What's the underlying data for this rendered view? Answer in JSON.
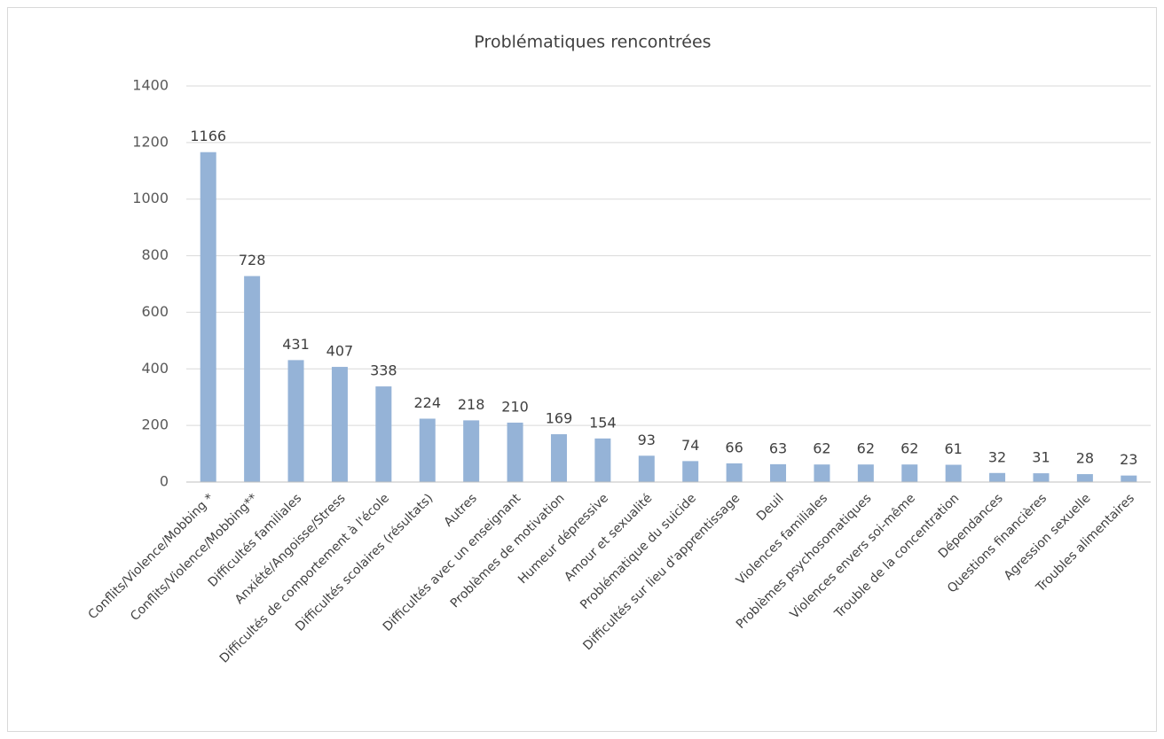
{
  "chart_data": {
    "type": "bar",
    "title": "Problématiques rencontrées",
    "categories": [
      "Conflits/Violence/Mobbing *",
      "Conflits/Violence/Mobbing**",
      "Difficultés familiales",
      "Anxiété/Angoisse/Stress",
      "Difficultés de comportement à l'école",
      "Difficultés scolaires (résultats)",
      "Autres",
      "Difficultés avec un enseignant",
      "Problèmes de motivation",
      "Humeur dépressive",
      "Amour et sexualité",
      "Problématique du suicide",
      "Difficultés sur lieu d'apprentissage",
      "Deuil",
      "Violences familiales",
      "Problèmes psychosomatiques",
      "Violences envers soi-même",
      "Trouble de la concentration",
      "Dépendances",
      "Questions financières",
      "Agression sexuelle",
      "Troubles alimentaires"
    ],
    "values": [
      1166,
      728,
      431,
      407,
      338,
      224,
      218,
      210,
      169,
      154,
      93,
      74,
      66,
      63,
      62,
      62,
      62,
      61,
      32,
      31,
      28,
      23
    ],
    "color": "#95b3d7",
    "ylim": [
      0,
      1400
    ],
    "yticks": [
      0,
      200,
      400,
      600,
      800,
      1000,
      1200,
      1400
    ],
    "grid": true
  }
}
